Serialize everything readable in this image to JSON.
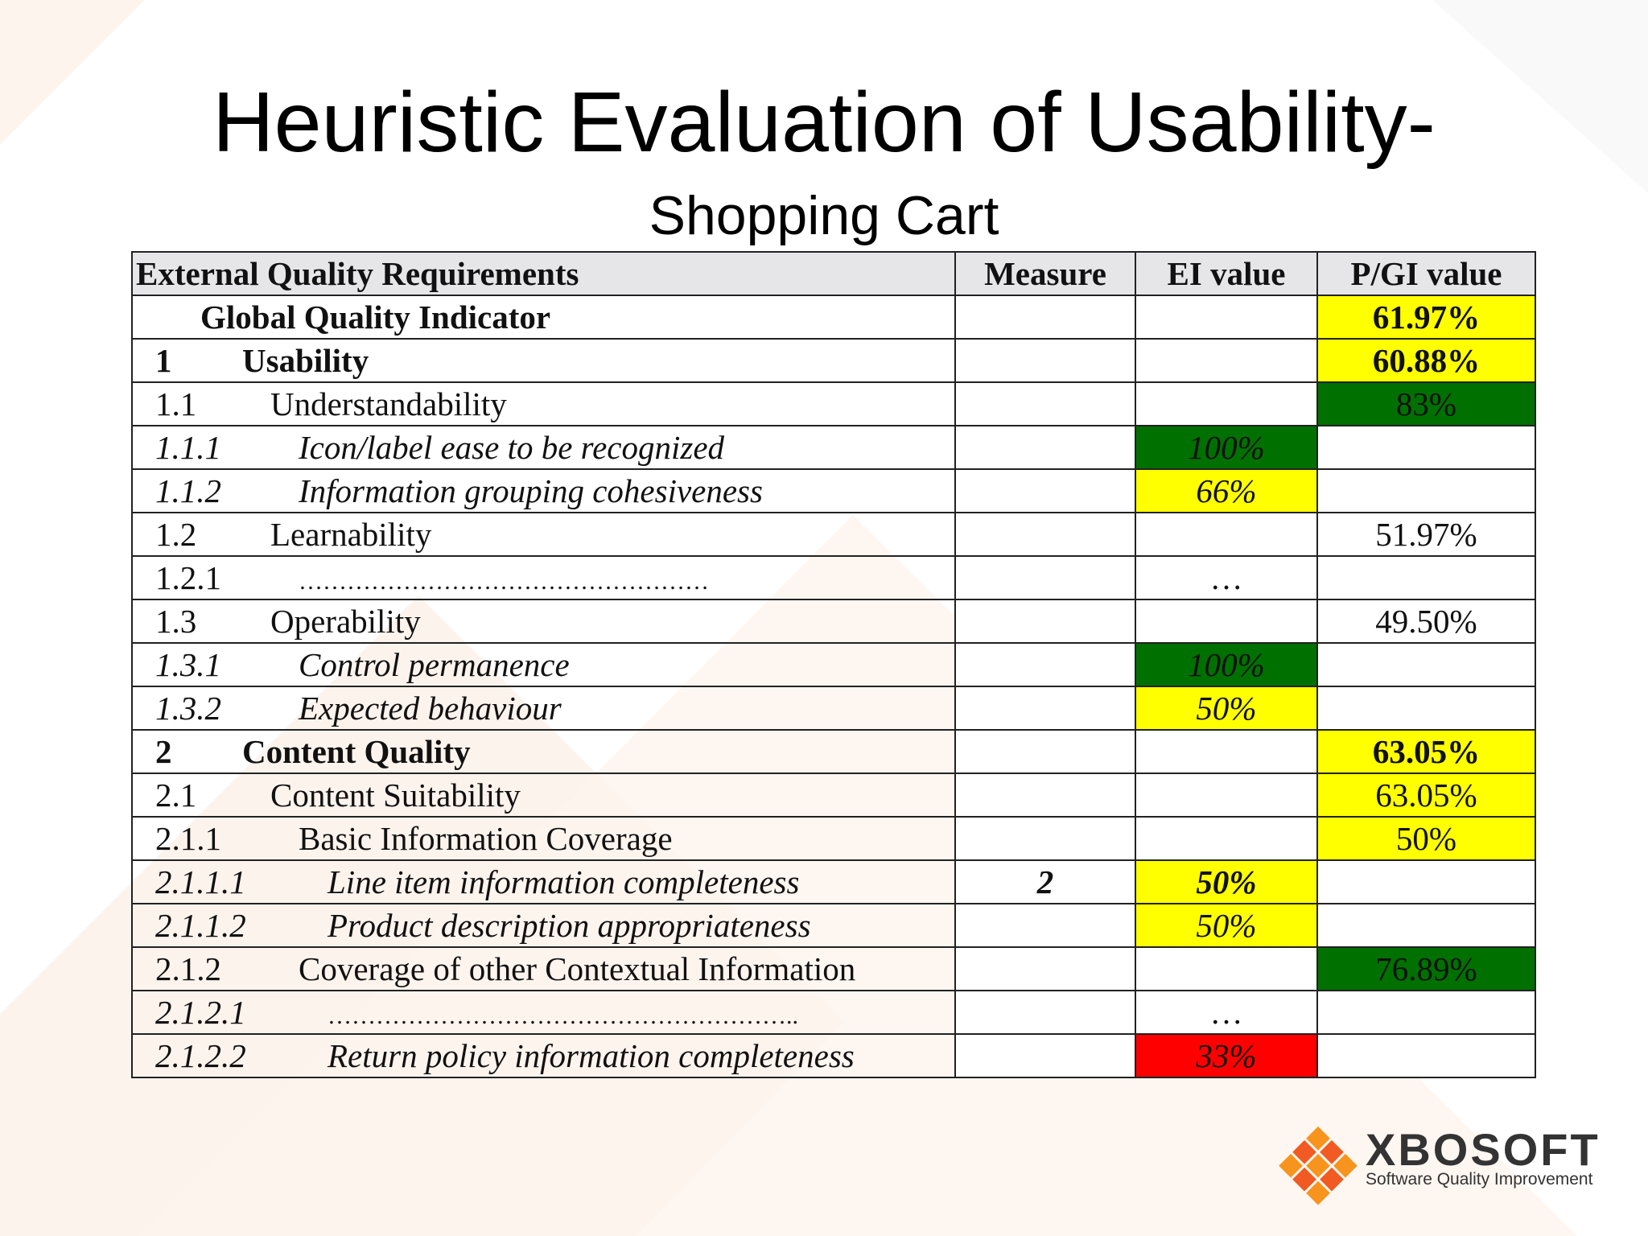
{
  "title": "Heuristic Evaluation of Usability-",
  "subtitle": "Shopping Cart",
  "table": {
    "headers": [
      "External Quality Requirements",
      "Measure",
      "EI value",
      "P/GI value"
    ],
    "rows": [
      {
        "num": "",
        "label": "Global Quality Indicator",
        "measure": "",
        "ei": "",
        "pgi": "61.97%",
        "pgi_color": "yellow"
      },
      {
        "num": "1",
        "label": "Usability",
        "measure": "",
        "ei": "",
        "pgi": "60.88%",
        "pgi_color": "yellow"
      },
      {
        "num": "1.1",
        "label": "Understandability",
        "measure": "",
        "ei": "",
        "pgi": "83%",
        "pgi_color": "green"
      },
      {
        "num": "1.1.1",
        "label": "Icon/label ease to be recognized",
        "measure": "",
        "ei": "100%",
        "ei_color": "green",
        "pgi": ""
      },
      {
        "num": "1.1.2",
        "label": "Information grouping cohesiveness",
        "measure": "",
        "ei": "66%",
        "ei_color": "yellow",
        "pgi": ""
      },
      {
        "num": "1.2",
        "label": "Learnability",
        "measure": "",
        "ei": "",
        "pgi": "51.97%"
      },
      {
        "num": "1.2.1",
        "label": "……………………………………………",
        "measure": "",
        "ei": "…",
        "pgi": ""
      },
      {
        "num": "1.3",
        "label": "Operability",
        "measure": "",
        "ei": "",
        "pgi": "49.50%"
      },
      {
        "num": "1.3.1",
        "label": "Control permanence",
        "measure": "",
        "ei": "100%",
        "ei_color": "green",
        "pgi": ""
      },
      {
        "num": "1.3.2",
        "label": "Expected behaviour",
        "measure": "",
        "ei": "50%",
        "ei_color": "yellow",
        "pgi": ""
      },
      {
        "num": "2",
        "label": "Content Quality",
        "measure": "",
        "ei": "",
        "pgi": "63.05%",
        "pgi_color": "yellow"
      },
      {
        "num": "2.1",
        "label": "Content Suitability",
        "measure": "",
        "ei": "",
        "pgi": "63.05%",
        "pgi_color": "yellow"
      },
      {
        "num": "2.1.1",
        "label": "Basic Information Coverage",
        "measure": "",
        "ei": "",
        "pgi": "50%",
        "pgi_color": "yellow"
      },
      {
        "num": "2.1.1.1",
        "label": "Line item information completeness",
        "measure": "2",
        "ei": "50%",
        "ei_color": "yellow",
        "pgi": ""
      },
      {
        "num": "2.1.1.2",
        "label": "Product description appropriateness",
        "measure": "",
        "ei": "50%",
        "ei_color": "yellow",
        "pgi": ""
      },
      {
        "num": "2.1.2",
        "label": "Coverage of other Contextual Information",
        "measure": "",
        "ei": "",
        "pgi": "76.89%",
        "pgi_color": "green"
      },
      {
        "num": "2.1.2.1",
        "label": "…………………………………………………..",
        "measure": "",
        "ei": "…",
        "pgi": ""
      },
      {
        "num": "2.1.2.2",
        "label": "Return policy information completeness",
        "measure": "",
        "ei": "33%",
        "ei_color": "red",
        "pgi": ""
      }
    ]
  },
  "logo": {
    "name": "XBOSOFT",
    "tagline": "Software Quality Improvement",
    "colors": [
      "#f7941d",
      "#f15a22"
    ]
  }
}
